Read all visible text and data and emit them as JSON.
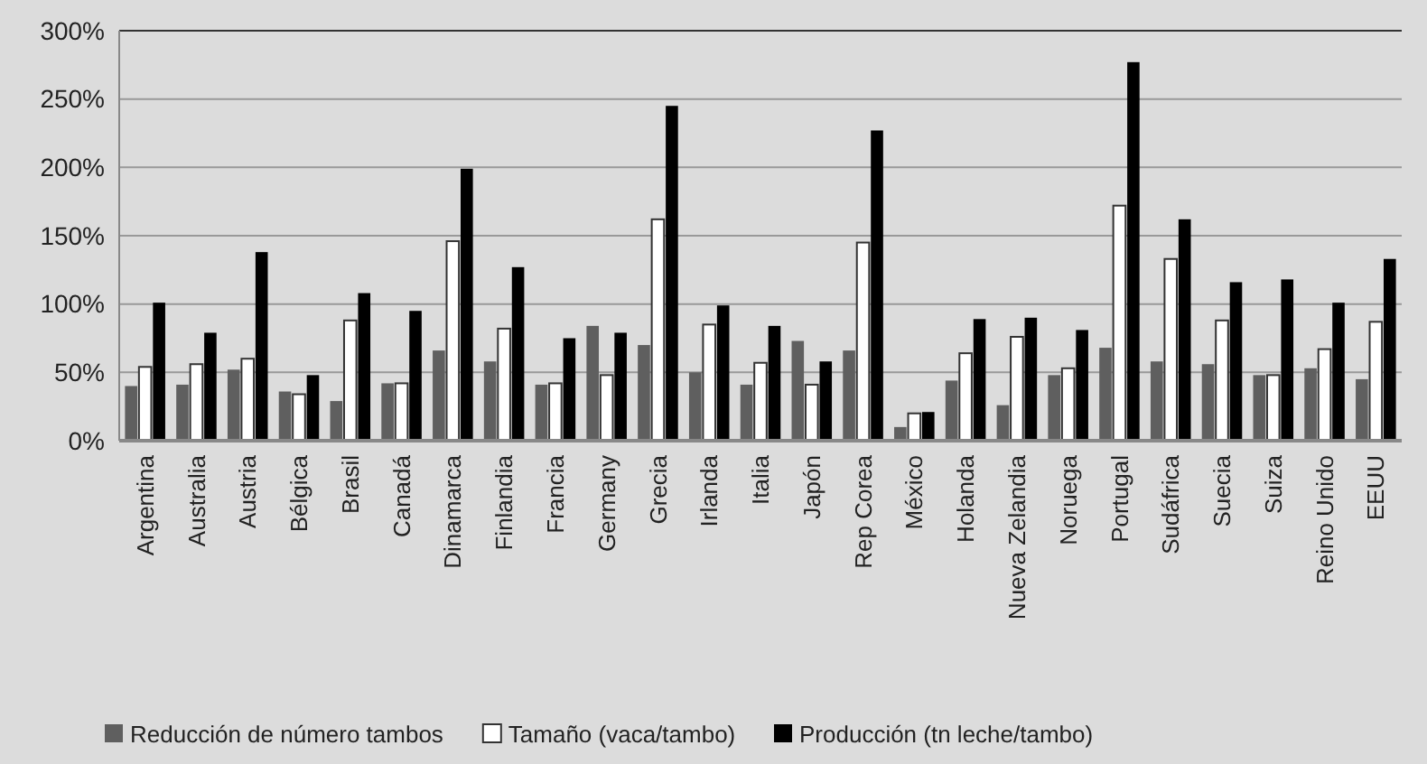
{
  "chart_data": {
    "type": "bar",
    "categories": [
      "Argentina",
      "Australia",
      "Austria",
      "Bélgica",
      "Brasil",
      "Canadá",
      "Dinamarca",
      "Finlandia",
      "Francia",
      "Germany",
      "Grecia",
      "Irlanda",
      "Italia",
      "Japón",
      "Rep Corea",
      "México",
      "Holanda",
      "Nueva Zelandia",
      "Noruega",
      "Portugal",
      "Sudáfrica",
      "Suecia",
      "Suiza",
      "Reino Unido",
      "EEUU"
    ],
    "series": [
      {
        "name": "Reducción de número tambos",
        "color": "#5f5f5f",
        "values": [
          40,
          41,
          52,
          36,
          29,
          42,
          66,
          58,
          41,
          84,
          70,
          50,
          41,
          73,
          66,
          10,
          44,
          26,
          48,
          68,
          58,
          56,
          48,
          53,
          45
        ]
      },
      {
        "name": "Tamaño (vaca/tambo)",
        "color": "#ffffff",
        "values": [
          54,
          56,
          60,
          34,
          88,
          42,
          146,
          82,
          42,
          48,
          162,
          85,
          57,
          41,
          145,
          20,
          64,
          76,
          53,
          172,
          133,
          88,
          48,
          67,
          87
        ]
      },
      {
        "name": "Producción (tn leche/tambo)",
        "color": "#000000",
        "values": [
          101,
          79,
          138,
          48,
          108,
          95,
          199,
          127,
          75,
          79,
          245,
          99,
          84,
          58,
          227,
          21,
          89,
          90,
          81,
          277,
          162,
          116,
          118,
          101,
          133
        ]
      }
    ],
    "ylim": [
      0,
      300
    ],
    "yticks": [
      {
        "value": 0,
        "label": "0%"
      },
      {
        "value": 50,
        "label": "50%"
      },
      {
        "value": 100,
        "label": "100%"
      },
      {
        "value": 150,
        "label": "150%"
      },
      {
        "value": 200,
        "label": "200%"
      },
      {
        "value": 250,
        "label": "250%"
      },
      {
        "value": 300,
        "label": "300%"
      }
    ],
    "grid": "y",
    "legend": "bottom"
  }
}
